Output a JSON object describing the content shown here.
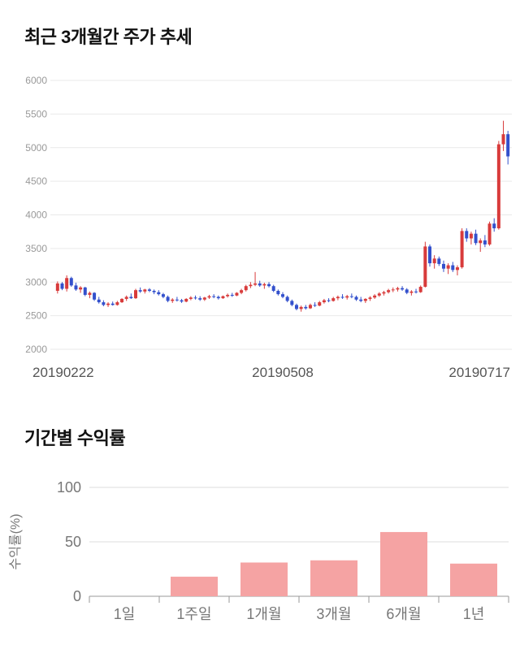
{
  "sections": {
    "price_trend_title": "최근 3개월간 주가 추세",
    "returns_title": "기간별 수익률"
  },
  "chart_data": [
    {
      "type": "candlestick",
      "title": "최근 3개월간 주가 추세",
      "x_tick_labels": [
        "20190222",
        "20190508",
        "20190717"
      ],
      "y_ticks": [
        2000,
        2500,
        3000,
        3500,
        4000,
        4500,
        5000,
        5500,
        6000
      ],
      "ylim": [
        2000,
        6000
      ],
      "up_color": "#d83b3b",
      "down_color": "#3350cc",
      "grid_color": "#e9e9e9",
      "axis_text_color": "#999999",
      "x_label_color": "#555555",
      "candles": [
        [
          2870,
          3010,
          2830,
          2980
        ],
        [
          2980,
          3000,
          2880,
          2900
        ],
        [
          2900,
          3100,
          2860,
          3060
        ],
        [
          3060,
          3080,
          2930,
          2950
        ],
        [
          2950,
          2990,
          2870,
          2890
        ],
        [
          2890,
          2940,
          2840,
          2920
        ],
        [
          2920,
          2930,
          2790,
          2810
        ],
        [
          2810,
          2860,
          2760,
          2840
        ],
        [
          2840,
          2850,
          2720,
          2740
        ],
        [
          2740,
          2780,
          2680,
          2700
        ],
        [
          2700,
          2730,
          2640,
          2660
        ],
        [
          2660,
          2700,
          2630,
          2680
        ],
        [
          2680,
          2710,
          2650,
          2660
        ],
        [
          2660,
          2720,
          2650,
          2700
        ],
        [
          2700,
          2760,
          2690,
          2750
        ],
        [
          2750,
          2800,
          2720,
          2780
        ],
        [
          2780,
          2830,
          2750,
          2760
        ],
        [
          2760,
          2900,
          2750,
          2880
        ],
        [
          2880,
          2920,
          2840,
          2860
        ],
        [
          2860,
          2900,
          2830,
          2890
        ],
        [
          2890,
          2910,
          2850,
          2870
        ],
        [
          2870,
          2890,
          2820,
          2850
        ],
        [
          2850,
          2880,
          2800,
          2820
        ],
        [
          2820,
          2840,
          2760,
          2780
        ],
        [
          2780,
          2800,
          2700,
          2720
        ],
        [
          2720,
          2760,
          2690,
          2740
        ],
        [
          2740,
          2780,
          2710,
          2730
        ],
        [
          2730,
          2750,
          2690,
          2710
        ],
        [
          2710,
          2760,
          2700,
          2750
        ],
        [
          2750,
          2790,
          2730,
          2770
        ],
        [
          2770,
          2800,
          2740,
          2760
        ],
        [
          2760,
          2790,
          2720,
          2740
        ],
        [
          2740,
          2780,
          2720,
          2770
        ],
        [
          2770,
          2810,
          2750,
          2790
        ],
        [
          2790,
          2820,
          2760,
          2780
        ],
        [
          2780,
          2800,
          2740,
          2760
        ],
        [
          2760,
          2800,
          2750,
          2790
        ],
        [
          2790,
          2830,
          2770,
          2810
        ],
        [
          2810,
          2840,
          2780,
          2800
        ],
        [
          2800,
          2850,
          2790,
          2840
        ],
        [
          2840,
          2900,
          2820,
          2880
        ],
        [
          2880,
          2960,
          2860,
          2940
        ],
        [
          2940,
          3000,
          2910,
          2960
        ],
        [
          2960,
          3150,
          2940,
          2980
        ],
        [
          2980,
          3020,
          2930,
          2950
        ],
        [
          2950,
          2990,
          2900,
          2970
        ],
        [
          2970,
          3000,
          2920,
          2940
        ],
        [
          2940,
          2960,
          2850,
          2870
        ],
        [
          2870,
          2890,
          2800,
          2820
        ],
        [
          2820,
          2850,
          2760,
          2780
        ],
        [
          2780,
          2800,
          2700,
          2720
        ],
        [
          2720,
          2740,
          2640,
          2660
        ],
        [
          2660,
          2680,
          2580,
          2600
        ],
        [
          2600,
          2650,
          2560,
          2630
        ],
        [
          2630,
          2660,
          2590,
          2610
        ],
        [
          2610,
          2680,
          2600,
          2660
        ],
        [
          2660,
          2700,
          2630,
          2650
        ],
        [
          2650,
          2720,
          2640,
          2700
        ],
        [
          2700,
          2750,
          2680,
          2730
        ],
        [
          2730,
          2760,
          2700,
          2720
        ],
        [
          2720,
          2780,
          2710,
          2760
        ],
        [
          2760,
          2800,
          2730,
          2780
        ],
        [
          2780,
          2820,
          2750,
          2770
        ],
        [
          2770,
          2810,
          2740,
          2790
        ],
        [
          2790,
          2830,
          2760,
          2780
        ],
        [
          2780,
          2800,
          2720,
          2740
        ],
        [
          2740,
          2780,
          2700,
          2720
        ],
        [
          2720,
          2760,
          2690,
          2750
        ],
        [
          2750,
          2790,
          2720,
          2770
        ],
        [
          2770,
          2820,
          2750,
          2800
        ],
        [
          2800,
          2850,
          2780,
          2830
        ],
        [
          2830,
          2870,
          2800,
          2850
        ],
        [
          2850,
          2900,
          2830,
          2880
        ],
        [
          2880,
          2920,
          2850,
          2890
        ],
        [
          2890,
          2930,
          2860,
          2910
        ],
        [
          2910,
          2940,
          2870,
          2890
        ],
        [
          2890,
          2910,
          2820,
          2840
        ],
        [
          2840,
          2880,
          2800,
          2860
        ],
        [
          2860,
          2900,
          2830,
          2850
        ],
        [
          2850,
          2950,
          2840,
          2930
        ],
        [
          2930,
          3600,
          2920,
          3530
        ],
        [
          3530,
          3560,
          3230,
          3280
        ],
        [
          3280,
          3400,
          3200,
          3350
        ],
        [
          3350,
          3380,
          3240,
          3270
        ],
        [
          3270,
          3320,
          3150,
          3200
        ],
        [
          3200,
          3280,
          3120,
          3250
        ],
        [
          3250,
          3300,
          3150,
          3180
        ],
        [
          3180,
          3250,
          3100,
          3220
        ],
        [
          3220,
          3800,
          3200,
          3760
        ],
        [
          3760,
          3800,
          3600,
          3650
        ],
        [
          3650,
          3750,
          3560,
          3720
        ],
        [
          3720,
          3780,
          3550,
          3580
        ],
        [
          3580,
          3650,
          3450,
          3620
        ],
        [
          3620,
          3700,
          3520,
          3560
        ],
        [
          3560,
          3900,
          3540,
          3870
        ],
        [
          3870,
          3950,
          3750,
          3800
        ],
        [
          3800,
          5100,
          3780,
          5050
        ],
        [
          5050,
          5400,
          4950,
          5200
        ],
        [
          5200,
          5250,
          4750,
          4870
        ]
      ]
    },
    {
      "type": "bar",
      "title": "기간별 수익률",
      "categories": [
        "1일",
        "1주일",
        "1개월",
        "3개월",
        "6개월",
        "1년"
      ],
      "values": [
        0,
        18,
        31,
        33,
        59,
        30
      ],
      "ylabel": "수익률(%)",
      "y_ticks": [
        0,
        50,
        100
      ],
      "ylim": [
        0,
        100
      ],
      "bar_color": "#f5a3a3",
      "grid_color": "#dddddd",
      "axis_color": "#999999",
      "label_color": "#777777"
    }
  ]
}
